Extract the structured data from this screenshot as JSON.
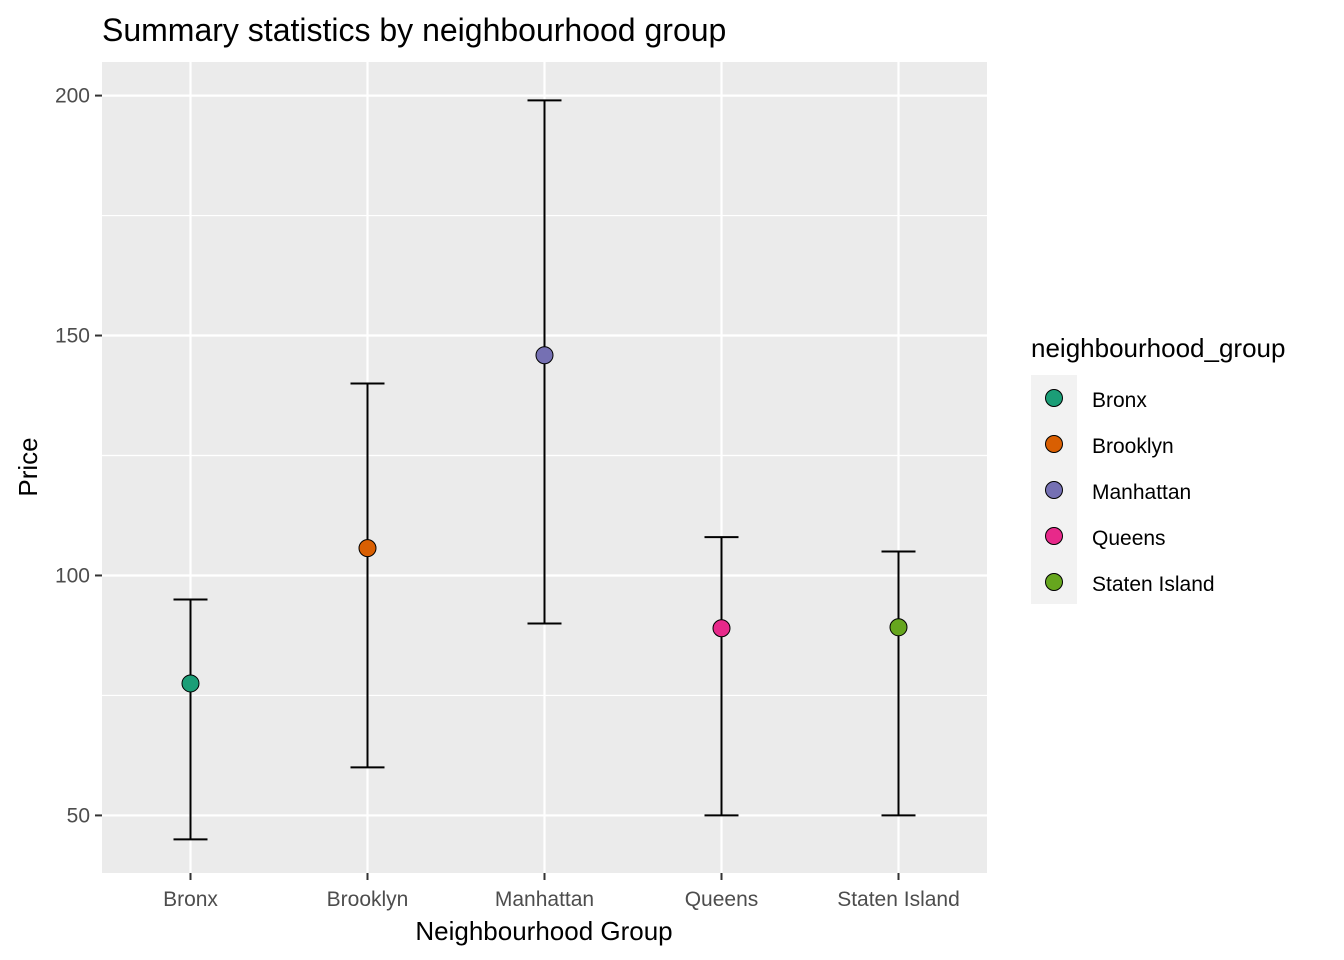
{
  "chart_data": {
    "type": "scatter",
    "title": "Summary statistics by neighbourhood group",
    "xlabel": "Neighbourhood Group",
    "ylabel": "Price",
    "categories": [
      "Bronx",
      "Brooklyn",
      "Manhattan",
      "Queens",
      "Staten Island"
    ],
    "ylim": [
      38,
      207
    ],
    "yticks": [
      50,
      100,
      150,
      200
    ],
    "grid": true,
    "legend": {
      "title": "neighbourhood_group",
      "position": "right"
    },
    "series": [
      {
        "name": "Bronx",
        "mean": 77.5,
        "lower": 45,
        "upper": 95,
        "color": "#1B9E77"
      },
      {
        "name": "Brooklyn",
        "mean": 105.7,
        "lower": 60,
        "upper": 140,
        "color": "#D95F02"
      },
      {
        "name": "Manhattan",
        "mean": 145.9,
        "lower": 90,
        "upper": 199,
        "color": "#7570B3"
      },
      {
        "name": "Queens",
        "mean": 89.0,
        "lower": 50,
        "upper": 108,
        "color": "#E7298A"
      },
      {
        "name": "Staten Island",
        "mean": 89.2,
        "lower": 50,
        "upper": 105,
        "color": "#66A61E"
      }
    ]
  }
}
